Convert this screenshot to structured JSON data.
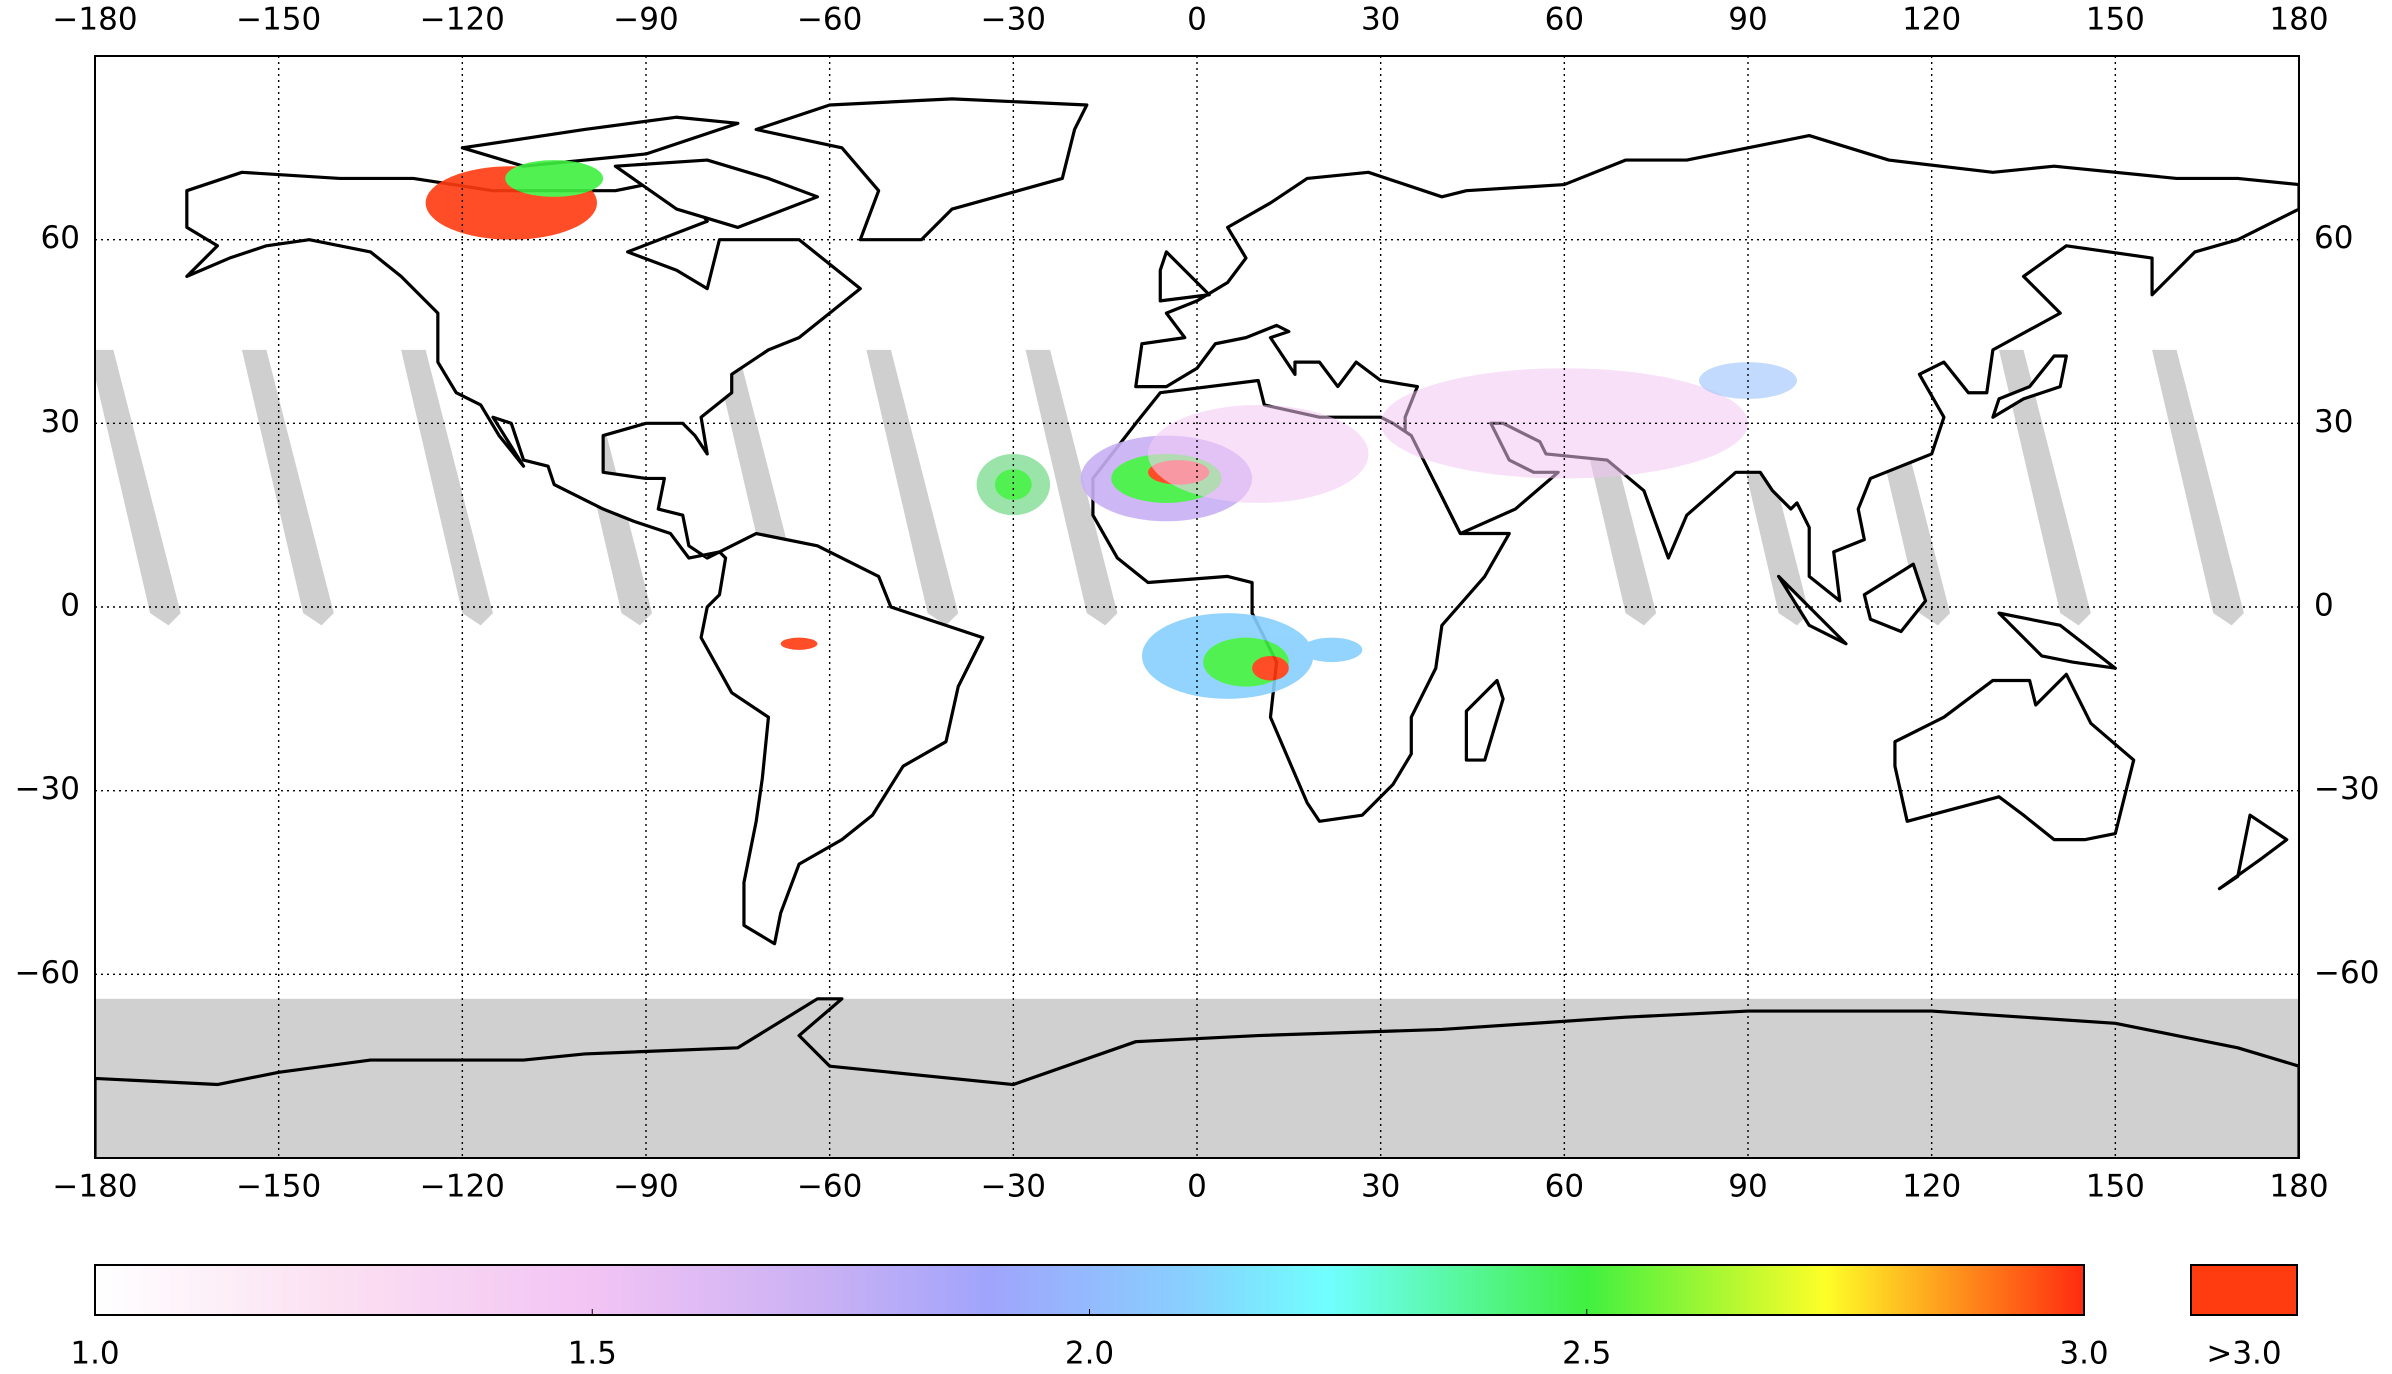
{
  "map": {
    "xlim": [
      -180,
      180
    ],
    "ylim": [
      -90,
      90
    ],
    "x_ticks": [
      {
        "value": -180,
        "label": "−180"
      },
      {
        "value": -150,
        "label": "−150"
      },
      {
        "value": -120,
        "label": "−120"
      },
      {
        "value": -90,
        "label": "−90"
      },
      {
        "value": -60,
        "label": "−60"
      },
      {
        "value": -30,
        "label": "−30"
      },
      0,
      30,
      60,
      90,
      120,
      150,
      180
    ],
    "y_ticks": [
      {
        "value": -60,
        "label": "−60"
      },
      {
        "value": -30,
        "label": "−30"
      },
      0,
      30,
      60
    ],
    "grid": true,
    "colorbar": {
      "lim": [
        1,
        3
      ],
      "ticks": [
        {
          "value": 1,
          "label": "1.0"
        },
        1.5,
        {
          "value": 2,
          "label": "2.0"
        },
        2.5,
        {
          "value": 3,
          "label": "3.0"
        }
      ],
      "extend_label": ">3.0"
    }
  }
}
